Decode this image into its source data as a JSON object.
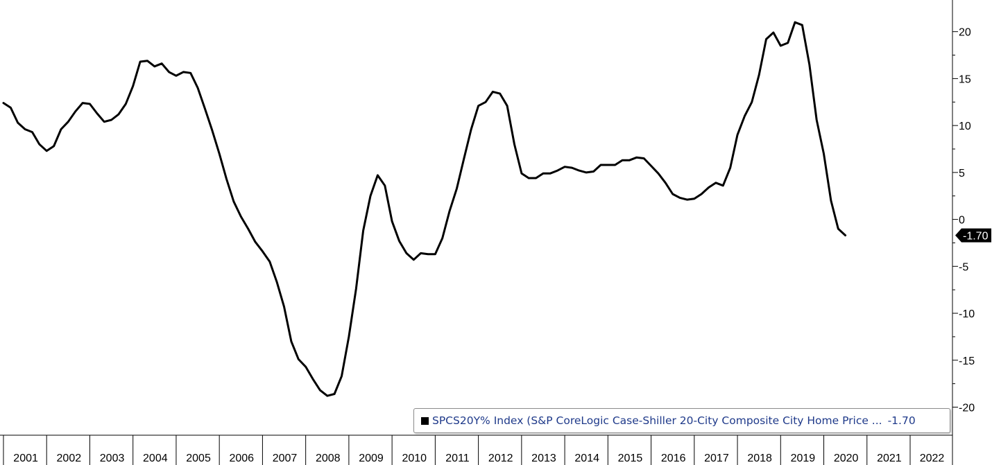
{
  "chart_data": {
    "type": "line",
    "title": "",
    "xlabel": "",
    "ylabel": "",
    "ylim": [
      -22.5,
      22
    ],
    "xlim": [
      "2001-01",
      "2023-02"
    ],
    "y_ticks": [
      20,
      15,
      10,
      5,
      0,
      -5,
      -10,
      -15,
      -20
    ],
    "x_ticks": [
      "2001",
      "2002",
      "2003",
      "2004",
      "2005",
      "2006",
      "2007",
      "2008",
      "2009",
      "2010",
      "2011",
      "2012",
      "2013",
      "2014",
      "2015",
      "2016",
      "2017",
      "2018",
      "2019",
      "2020",
      "2021",
      "2022"
    ],
    "y_axis_side": "right",
    "grid": false,
    "legend_placement": "bottom-right",
    "last_value_label": "-1.70",
    "series": [
      {
        "name": "SPCS20Y% Index (S&P CoreLogic Case-Shiller 20-City Composite City Home Price ...",
        "last_value": "-1.70",
        "color": "#000000",
        "points": [
          [
            "2001-01",
            12.4
          ],
          [
            "2001-03",
            11.9
          ],
          [
            "2001-05",
            10.3
          ],
          [
            "2001-07",
            9.6
          ],
          [
            "2001-09",
            9.3
          ],
          [
            "2001-11",
            8.0
          ],
          [
            "2002-01",
            7.3
          ],
          [
            "2002-03",
            7.8
          ],
          [
            "2002-05",
            9.6
          ],
          [
            "2002-07",
            10.4
          ],
          [
            "2002-09",
            11.5
          ],
          [
            "2002-11",
            12.4
          ],
          [
            "2003-01",
            12.3
          ],
          [
            "2003-03",
            11.3
          ],
          [
            "2003-05",
            10.4
          ],
          [
            "2003-07",
            10.6
          ],
          [
            "2003-09",
            11.2
          ],
          [
            "2003-11",
            12.3
          ],
          [
            "2004-01",
            14.2
          ],
          [
            "2004-03",
            16.8
          ],
          [
            "2004-05",
            16.9
          ],
          [
            "2004-07",
            16.3
          ],
          [
            "2004-09",
            16.6
          ],
          [
            "2004-11",
            15.7
          ],
          [
            "2005-01",
            15.3
          ],
          [
            "2005-03",
            15.7
          ],
          [
            "2005-05",
            15.6
          ],
          [
            "2005-07",
            14.0
          ],
          [
            "2005-09",
            11.8
          ],
          [
            "2005-11",
            9.5
          ],
          [
            "2006-01",
            7.0
          ],
          [
            "2006-03",
            4.3
          ],
          [
            "2006-05",
            1.9
          ],
          [
            "2006-07",
            0.3
          ],
          [
            "2006-09",
            -1.0
          ],
          [
            "2006-11",
            -2.4
          ],
          [
            "2007-01",
            -3.4
          ],
          [
            "2007-03",
            -4.5
          ],
          [
            "2007-05",
            -6.7
          ],
          [
            "2007-07",
            -9.3
          ],
          [
            "2007-09",
            -13.0
          ],
          [
            "2007-11",
            -14.9
          ],
          [
            "2008-01",
            -15.7
          ],
          [
            "2008-03",
            -17.0
          ],
          [
            "2008-05",
            -18.2
          ],
          [
            "2008-07",
            -18.8
          ],
          [
            "2008-09",
            -18.6
          ],
          [
            "2008-11",
            -16.7
          ],
          [
            "2009-01",
            -12.5
          ],
          [
            "2009-03",
            -7.4
          ],
          [
            "2009-05",
            -1.2
          ],
          [
            "2009-07",
            2.5
          ],
          [
            "2009-09",
            4.7
          ],
          [
            "2009-11",
            3.6
          ],
          [
            "2010-01",
            -0.2
          ],
          [
            "2010-03",
            -2.3
          ],
          [
            "2010-05",
            -3.6
          ],
          [
            "2010-07",
            -4.3
          ],
          [
            "2010-09",
            -3.6
          ],
          [
            "2010-11",
            -3.7
          ],
          [
            "2011-01",
            -3.7
          ],
          [
            "2011-03",
            -2.0
          ],
          [
            "2011-05",
            0.9
          ],
          [
            "2011-07",
            3.3
          ],
          [
            "2011-09",
            6.5
          ],
          [
            "2011-11",
            9.6
          ],
          [
            "2012-01",
            12.1
          ],
          [
            "2012-03",
            12.5
          ],
          [
            "2012-05",
            13.6
          ],
          [
            "2012-07",
            13.4
          ],
          [
            "2012-09",
            12.1
          ],
          [
            "2012-11",
            8.0
          ],
          [
            "2013-01",
            4.9
          ],
          [
            "2013-03",
            4.4
          ],
          [
            "2013-05",
            4.4
          ],
          [
            "2013-07",
            4.9
          ],
          [
            "2013-09",
            4.9
          ],
          [
            "2013-11",
            5.2
          ],
          [
            "2014-01",
            5.6
          ],
          [
            "2014-03",
            5.5
          ],
          [
            "2014-05",
            5.2
          ],
          [
            "2014-07",
            5.0
          ],
          [
            "2014-09",
            5.1
          ],
          [
            "2014-11",
            5.8
          ],
          [
            "2015-01",
            5.8
          ],
          [
            "2015-03",
            5.8
          ],
          [
            "2015-05",
            6.3
          ],
          [
            "2015-07",
            6.3
          ],
          [
            "2015-09",
            6.6
          ],
          [
            "2015-11",
            6.5
          ],
          [
            "2016-01",
            5.7
          ],
          [
            "2016-03",
            4.9
          ],
          [
            "2016-05",
            3.9
          ],
          [
            "2016-07",
            2.7
          ],
          [
            "2016-09",
            2.3
          ],
          [
            "2016-11",
            2.1
          ],
          [
            "2017-01",
            2.2
          ],
          [
            "2017-03",
            2.7
          ],
          [
            "2017-05",
            3.4
          ],
          [
            "2017-07",
            3.9
          ],
          [
            "2017-09",
            3.6
          ],
          [
            "2017-11",
            5.5
          ],
          [
            "2018-01",
            9.0
          ],
          [
            "2018-03",
            11.0
          ],
          [
            "2018-05",
            12.5
          ],
          [
            "2018-07",
            15.4
          ],
          [
            "2018-09",
            19.2
          ],
          [
            "2018-11",
            19.9
          ],
          [
            "2019-01",
            18.5
          ],
          [
            "2019-03",
            18.8
          ],
          [
            "2019-05",
            21.0
          ],
          [
            "2019-07",
            20.7
          ],
          [
            "2019-09",
            16.5
          ],
          [
            "2019-11",
            10.6
          ],
          [
            "2020-01",
            7.0
          ],
          [
            "2020-03",
            2.0
          ],
          [
            "2020-05",
            -1.0
          ],
          [
            "2020-07",
            -1.7
          ]
        ]
      }
    ]
  }
}
